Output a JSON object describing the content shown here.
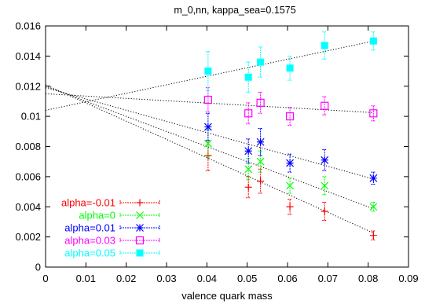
{
  "chart_data": {
    "type": "scatter",
    "title": "m_0,nn, kappa_sea=0.1575",
    "xlabel": "valence quark mass",
    "ylabel": "",
    "xlim": [
      0,
      0.09
    ],
    "ylim": [
      0,
      0.016
    ],
    "xticks": [
      0,
      0.01,
      0.02,
      0.03,
      0.04,
      0.05,
      0.06,
      0.07,
      0.08,
      0.09
    ],
    "xtick_labels": [
      "0",
      "0.01",
      "0.02",
      "0.03",
      "0.04",
      "0.05",
      "0.06",
      "0.07",
      "0.08",
      "0.09"
    ],
    "yticks": [
      0,
      0.002,
      0.004,
      0.006,
      0.008,
      0.01,
      0.012,
      0.014,
      0.016
    ],
    "ytick_labels": [
      "0",
      "0.002",
      "0.004",
      "0.006",
      "0.008",
      "0.01",
      "0.012",
      "0.014",
      "0.016"
    ],
    "grid": false,
    "legend_position": "bottom-left",
    "series": [
      {
        "name": "alpha=-0.01",
        "color": "#ff0000",
        "marker": "plus",
        "x": [
          0.0403,
          0.0503,
          0.0533,
          0.0606,
          0.0692,
          0.0813
        ],
        "y": [
          0.0074,
          0.0053,
          0.0057,
          0.004,
          0.0037,
          0.0021
        ],
        "err": [
          0.001,
          0.0007,
          0.0008,
          0.0005,
          0.0006,
          0.0003
        ],
        "fit": [
          0.0121,
          -0.121
        ]
      },
      {
        "name": "alpha=0",
        "color": "#00ff00",
        "marker": "x",
        "x": [
          0.0403,
          0.0503,
          0.0533,
          0.0606,
          0.0692,
          0.0813
        ],
        "y": [
          0.0082,
          0.0065,
          0.007,
          0.0054,
          0.0054,
          0.004
        ],
        "err": [
          0.0009,
          0.0007,
          0.0007,
          0.0005,
          0.0006,
          0.0003
        ],
        "fit": [
          0.012,
          -0.1
        ]
      },
      {
        "name": "alpha=0.01",
        "color": "#0000ff",
        "marker": "star",
        "x": [
          0.0403,
          0.0503,
          0.0533,
          0.0606,
          0.0692,
          0.0813
        ],
        "y": [
          0.0093,
          0.0077,
          0.0083,
          0.0069,
          0.0071,
          0.0059
        ],
        "err": [
          0.0009,
          0.0008,
          0.0009,
          0.0006,
          0.0007,
          0.0004
        ],
        "fit": [
          0.0119,
          -0.0745
        ]
      },
      {
        "name": "alpha=0.03",
        "color": "#ff00ff",
        "marker": "square",
        "x": [
          0.0403,
          0.0503,
          0.0533,
          0.0606,
          0.0692,
          0.0813
        ],
        "y": [
          0.0111,
          0.0102,
          0.0109,
          0.01,
          0.0107,
          0.0102
        ],
        "err": [
          0.0008,
          0.0007,
          0.0007,
          0.0006,
          0.0006,
          0.0005
        ],
        "fit": [
          0.0115,
          -0.0154
        ]
      },
      {
        "name": "alpha=0.05",
        "color": "#00ffff",
        "marker": "filled-square",
        "x": [
          0.0403,
          0.0503,
          0.0533,
          0.0606,
          0.0692,
          0.0813
        ],
        "y": [
          0.013,
          0.0126,
          0.0136,
          0.0132,
          0.0147,
          0.015
        ],
        "err": [
          0.0013,
          0.001,
          0.001,
          0.0008,
          0.0009,
          0.0006
        ],
        "fit": [
          0.0104,
          0.0565
        ]
      }
    ]
  }
}
